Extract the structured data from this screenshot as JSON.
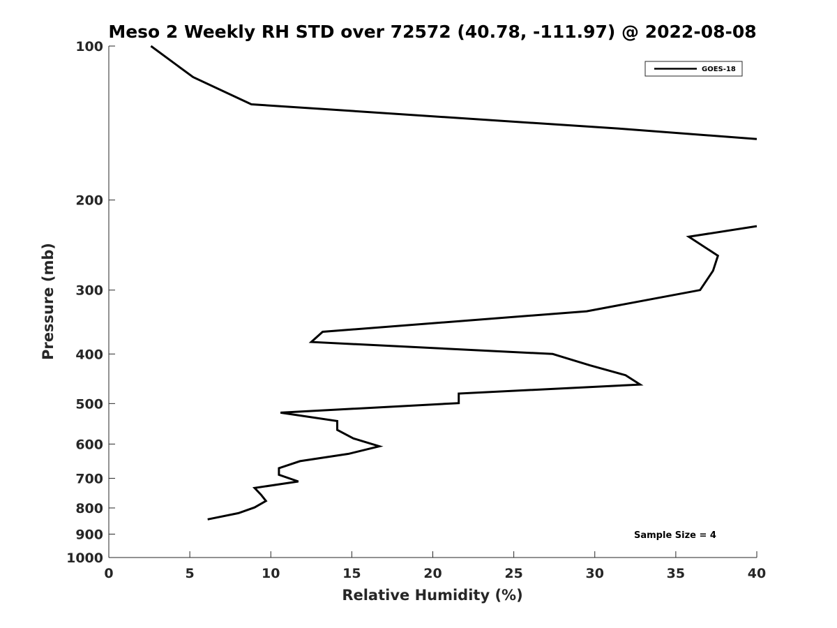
{
  "chart_data": {
    "type": "line",
    "title": "Meso 2 Weekly RH STD over 72572 (40.78, -111.97) @ 2022-08-08",
    "xlabel": "Relative Humidity (%)",
    "ylabel": "Pressure (mb)",
    "xlim": [
      0,
      40
    ],
    "ylim": [
      100,
      1000
    ],
    "y_scale": "log",
    "y_reversed": true,
    "x_ticks": [
      0,
      5,
      10,
      15,
      20,
      25,
      30,
      35,
      40
    ],
    "y_ticks": [
      100,
      200,
      300,
      400,
      500,
      600,
      700,
      800,
      900,
      1000
    ],
    "grid": false,
    "legend_position": "top-right",
    "series": [
      {
        "name": "GOES-18",
        "color": "#000000",
        "x": [
          2.6,
          5.2,
          8.8,
          31.5,
          40,
          null,
          40,
          35.8,
          37.6,
          37.3,
          36.5,
          29.5,
          13.2,
          12.5,
          27.4,
          29.7,
          31.9,
          32.8,
          21.6,
          21.6,
          10.6,
          14.1,
          14.1,
          15.1,
          16.7,
          14.8,
          11.8,
          10.5,
          10.5,
          11.7,
          9.0,
          9.4,
          9.7,
          9.0,
          8.0,
          6.1
        ],
        "y": [
          100,
          115,
          130,
          145,
          152,
          null,
          225,
          236,
          257,
          275,
          300,
          330,
          362,
          379,
          400,
          421,
          440,
          459,
          478,
          499,
          521,
          541,
          563,
          585,
          606,
          627,
          648,
          669,
          689,
          710,
          731,
          754,
          775,
          798,
          819,
          842
        ]
      }
    ],
    "annotations": [
      "Sample Size = 4"
    ]
  }
}
